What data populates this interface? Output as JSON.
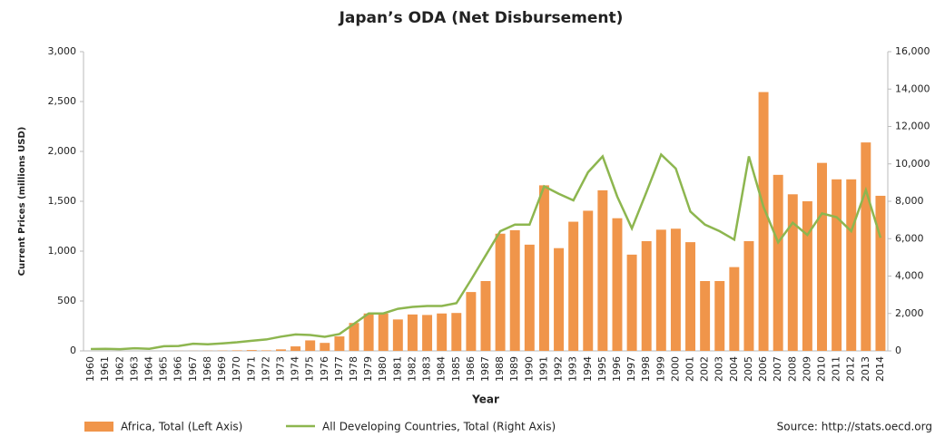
{
  "chart_data": {
    "type": "bar_line",
    "title": "Japan’s ODA (Net Disbursement)",
    "x_label": "Year",
    "y_label": "Current Prices (millions USD)",
    "source": "Source: http://stats.oecd.org",
    "categories": [
      "1960",
      "1961",
      "1962",
      "1963",
      "1964",
      "1965",
      "1966",
      "1967",
      "1968",
      "1969",
      "1970",
      "1971",
      "1972",
      "1973",
      "1974",
      "1975",
      "1976",
      "1977",
      "1978",
      "1979",
      "1980",
      "1981",
      "1982",
      "1983",
      "1984",
      "1985",
      "1986",
      "1987",
      "1988",
      "1989",
      "1990",
      "1991",
      "1992",
      "1993",
      "1994",
      "1995",
      "1996",
      "1997",
      "1998",
      "1999",
      "2000",
      "2001",
      "2002",
      "2003",
      "2004",
      "2005",
      "2006",
      "2007",
      "2008",
      "2009",
      "2010",
      "2011",
      "2012",
      "2013",
      "2014"
    ],
    "series": [
      {
        "name": "Africa, Total (Left Axis)",
        "type": "bar",
        "color": "#f0954a",
        "values": [
          0,
          0,
          0,
          0,
          0,
          0,
          1,
          1,
          2,
          3,
          5,
          8,
          5,
          15,
          45,
          105,
          80,
          145,
          280,
          375,
          375,
          315,
          365,
          360,
          375,
          380,
          590,
          700,
          1175,
          1210,
          1065,
          1660,
          1030,
          1295,
          1405,
          1610,
          1330,
          965,
          1100,
          1215,
          1225,
          1090,
          700,
          700,
          840,
          1100,
          2595,
          1765,
          1570,
          1500,
          1885,
          1720,
          1720,
          2090,
          1555
        ]
      },
      {
        "name": "All Developing Countries, Total (Right Axis)",
        "type": "line",
        "axis": "y2",
        "color": "#8db64f",
        "values": [
          100,
          110,
          90,
          140,
          110,
          250,
          260,
          380,
          350,
          400,
          460,
          540,
          610,
          760,
          880,
          850,
          750,
          900,
          1450,
          2000,
          2000,
          2250,
          2350,
          2400,
          2400,
          2550,
          3800,
          5100,
          6400,
          6750,
          6750,
          8800,
          8400,
          8050,
          9550,
          10400,
          8250,
          6550,
          8500,
          10500,
          9750,
          7450,
          6750,
          6400,
          5950,
          10400,
          7700,
          5800,
          6850,
          6200,
          7350,
          7150,
          6400,
          8600,
          6050
        ]
      }
    ],
    "ylim": [
      0,
      3000
    ],
    "yticks": [
      0,
      500,
      {
        "value": 1000,
        "label": "1,000"
      },
      {
        "value": 1500,
        "label": "1,500"
      },
      {
        "value": 2000,
        "label": "2,000"
      },
      {
        "value": 2500,
        "label": "2,500"
      },
      {
        "value": 3000,
        "label": "3,000"
      }
    ],
    "y2lim": [
      0,
      16000
    ],
    "y2ticks": [
      0,
      {
        "value": 2000,
        "label": "2,000"
      },
      {
        "value": 4000,
        "label": "4,000"
      },
      {
        "value": 6000,
        "label": "6,000"
      },
      {
        "value": 8000,
        "label": "8,000"
      },
      {
        "value": 10000,
        "label": "10,000"
      },
      {
        "value": 12000,
        "label": "12,000"
      },
      {
        "value": 14000,
        "label": "14,000"
      },
      {
        "value": 16000,
        "label": "16,000"
      }
    ]
  }
}
